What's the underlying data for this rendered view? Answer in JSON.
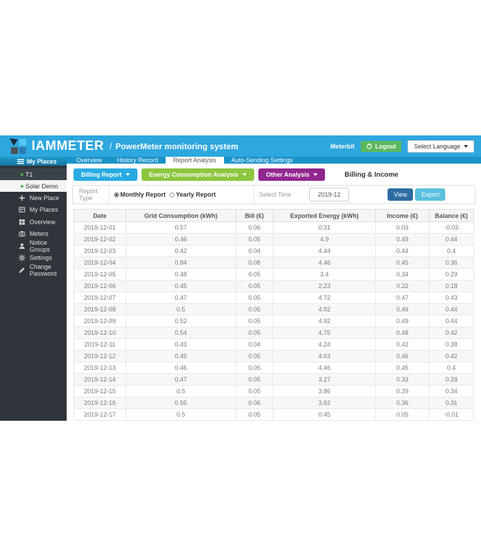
{
  "header": {
    "logo_text": "IAMMETER",
    "separator": "/",
    "app_title": "PowerMeter monitoring system",
    "username": "Meterbit",
    "logout_label": "Logout",
    "language_label": "Select Language"
  },
  "sidebar": {
    "places_header": "My Places",
    "places": [
      {
        "label": "T1",
        "selected": false
      },
      {
        "label": "Solar Demo",
        "selected": true
      }
    ],
    "items": [
      {
        "label": "New Place",
        "icon": "plus-icon"
      },
      {
        "label": "My Places",
        "icon": "list-icon"
      },
      {
        "label": "Overview",
        "icon": "grid-icon"
      },
      {
        "label": "Meters",
        "icon": "meter-icon"
      },
      {
        "label": "Notice Groups",
        "icon": "user-icon"
      },
      {
        "label": "Settings",
        "icon": "gear-icon"
      },
      {
        "label": "Change Password",
        "icon": "pencil-icon"
      }
    ]
  },
  "tabs": [
    {
      "label": "Overview",
      "active": false
    },
    {
      "label": "History Record",
      "active": false
    },
    {
      "label": "Report Analysis",
      "active": true
    },
    {
      "label": "Auto-Sending Settings",
      "active": false
    }
  ],
  "toolbar": {
    "billing_report_label": "Billing Report",
    "energy_analysis_label": "Energy Consumption Analysis",
    "other_analysis_label": "Other Analysis",
    "section_title": "Billing & Income"
  },
  "filter": {
    "report_type_label": "Report Type",
    "monthly_label": "Monthly Report",
    "yearly_label": "Yearly Report",
    "selected_report_type": "Monthly Report",
    "select_time_label": "Select Time",
    "time_value": "2019-12",
    "view_label": "View",
    "export_label": "Export"
  },
  "table": {
    "columns": [
      "Date",
      "Grid Consumption (kWh)",
      "Bill (€)",
      "Exported Energy (kWh)",
      "Income (€)",
      "Balance (€)"
    ],
    "rows": [
      [
        "2019-12-01",
        "0.57",
        "0.06",
        "0.31",
        "0.03",
        "-0.03"
      ],
      [
        "2019-12-02",
        "0.46",
        "0.05",
        "4.9",
        "0.49",
        "0.44"
      ],
      [
        "2019-12-03",
        "0.42",
        "0.04",
        "4.44",
        "0.44",
        "0.4"
      ],
      [
        "2019-12-04",
        "0.84",
        "0.08",
        "4.46",
        "0.45",
        "0.36"
      ],
      [
        "2019-12-05",
        "0.48",
        "0.05",
        "3.4",
        "0.34",
        "0.29"
      ],
      [
        "2019-12-06",
        "0.45",
        "0.05",
        "2.23",
        "0.22",
        "0.18"
      ],
      [
        "2019-12-07",
        "0.47",
        "0.05",
        "4.72",
        "0.47",
        "0.43"
      ],
      [
        "2019-12-08",
        "0.5",
        "0.05",
        "4.92",
        "0.49",
        "0.44"
      ],
      [
        "2019-12-09",
        "0.52",
        "0.05",
        "4.92",
        "0.49",
        "0.44"
      ],
      [
        "2019-12-10",
        "0.54",
        "0.05",
        "4.75",
        "0.48",
        "0.42"
      ],
      [
        "2019-12-11",
        "0.43",
        "0.04",
        "4.24",
        "0.42",
        "0.38"
      ],
      [
        "2019-12-12",
        "0.45",
        "0.05",
        "4.63",
        "0.46",
        "0.42"
      ],
      [
        "2019-12-13",
        "0.46",
        "0.05",
        "4.46",
        "0.45",
        "0.4"
      ],
      [
        "2019-12-14",
        "0.47",
        "0.05",
        "3.27",
        "0.33",
        "0.28"
      ],
      [
        "2019-12-15",
        "0.5",
        "0.05",
        "3.86",
        "0.39",
        "0.34"
      ],
      [
        "2019-12-16",
        "0.55",
        "0.06",
        "3.62",
        "0.36",
        "0.31"
      ],
      [
        "2019-12-17",
        "0.5",
        "0.05",
        "0.45",
        "0.05",
        "-0.01"
      ]
    ]
  },
  "colors": {
    "header_bg": "#2ea7df",
    "tabbar_bg": "#1b93c8",
    "sidebar_bg": "#2f353b",
    "accent_cyan": "#29abe2",
    "accent_green": "#8cc63e",
    "accent_purple": "#92278f",
    "logout_green": "#5cb85c",
    "view_blue": "#2e6da4",
    "export_blue": "#5bc0de",
    "place_dot_green": "#4caf50",
    "logo_navy": "#1c2b39",
    "logo_lightblue": "#56c5f0",
    "logo_gray": "#4d5257",
    "logo_blue": "#2c7cb5"
  }
}
